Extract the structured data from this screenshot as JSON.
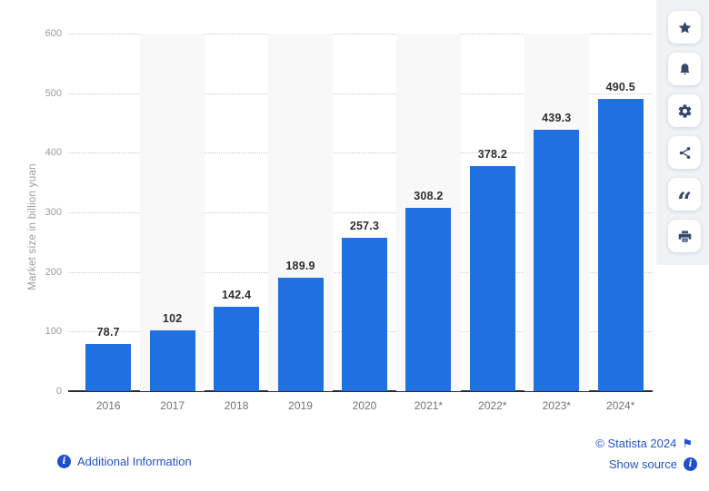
{
  "chart_data": {
    "type": "bar",
    "categories": [
      "2016",
      "2017",
      "2018",
      "2019",
      "2020",
      "2021*",
      "2022*",
      "2023*",
      "2024*"
    ],
    "values": [
      78.7,
      102,
      142.4,
      189.9,
      257.3,
      308.2,
      378.2,
      439.3,
      490.5
    ],
    "value_labels": [
      "78.7",
      "102",
      "142.4",
      "189.9",
      "257.3",
      "308.2",
      "378.2",
      "439.3",
      "490.5"
    ],
    "xlabel": "",
    "ylabel": "Market size in billion yuan",
    "ylim": [
      0,
      600
    ],
    "ytick_step": 100,
    "grid": "horizontal-dotted",
    "legend": "none",
    "bar_color": "#2170e2",
    "stripe_color": "#f8f8f8",
    "striped_column_indices": [
      1,
      3,
      5,
      7
    ]
  },
  "sidebar": {
    "icons": [
      "star-icon",
      "bell-icon",
      "gear-icon",
      "share-icon",
      "quote-icon",
      "print-icon"
    ]
  },
  "footer": {
    "additional_information_label": "Additional Information",
    "copyright_label": "© Statista 2024",
    "show_source_label": "Show source"
  },
  "colors": {
    "bar_blue": "#2170e2",
    "link_blue": "#2353c8",
    "info_icon_blue": "#1c50cc",
    "sidebar_icon_navy": "#36496b",
    "rail_background": "#f0f2f5",
    "column_stripe": "#f8f8f8",
    "gridline_gray": "#c9c9c9",
    "axis_dark": "#2b2b2b",
    "ytick_gray": "#9b9b9b",
    "xtick_gray": "#737373",
    "value_label_dark": "#2e2e2e"
  }
}
